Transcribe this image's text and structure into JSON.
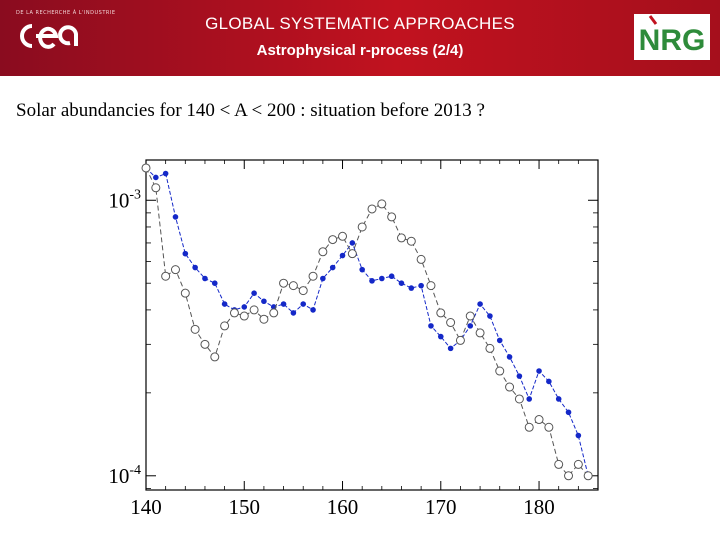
{
  "header": {
    "title": "GLOBAL SYSTEMATIC APPROACHES",
    "subtitle": "Astrophysical r-process (2/4)",
    "left_logo_text": "cea",
    "left_logo_small": "DE LA RECHERCHE À L'INDUSTRIE",
    "right_logo_text": "NRG"
  },
  "slide": {
    "heading": "Solar abundancies for 140 < A < 200 : situation before 2013 ?"
  },
  "colors": {
    "header_red": "#c1121f",
    "series_blue": "#1428c8",
    "series_gray": "#555555"
  },
  "chart_data": {
    "type": "line",
    "title": "",
    "xlabel": "",
    "ylabel": "",
    "xlim": [
      140,
      186
    ],
    "ylim": [
      8.88e-05,
      0.0014
    ],
    "yscale": "log",
    "x_ticks": [
      140,
      150,
      160,
      170,
      180
    ],
    "x_tick_labels": [
      "140",
      "150",
      "160",
      "170",
      "180"
    ],
    "y_ticks": [
      0.001,
      0.0001
    ],
    "y_tick_labels": [
      "10-3",
      "10-4"
    ],
    "series": [
      {
        "marker": "filled-circle",
        "line": "dashed",
        "color": "#1428c8",
        "x": [
          140,
          141,
          142,
          143,
          144,
          145,
          146,
          147,
          148,
          149,
          150,
          151,
          152,
          153,
          154,
          155,
          156,
          157,
          158,
          159,
          160,
          161,
          162,
          163,
          164,
          165,
          166,
          167,
          168,
          169,
          170,
          171,
          172,
          173,
          174,
          175,
          176,
          177,
          178,
          179,
          180,
          181,
          182,
          183,
          184,
          185
        ],
        "y": [
          0.00131,
          0.00121,
          0.00125,
          0.00087,
          0.00064,
          0.00057,
          0.00052,
          0.0005,
          0.00042,
          0.0004,
          0.00041,
          0.00046,
          0.00043,
          0.00041,
          0.00042,
          0.00039,
          0.00042,
          0.0004,
          0.00052,
          0.00057,
          0.00063,
          0.0007,
          0.00056,
          0.00051,
          0.00052,
          0.00053,
          0.0005,
          0.00048,
          0.00049,
          0.00035,
          0.00032,
          0.00029,
          0.00031,
          0.00035,
          0.00042,
          0.00038,
          0.00031,
          0.00027,
          0.00023,
          0.00019,
          0.00024,
          0.00022,
          0.00019,
          0.00017,
          0.00014,
          0.0001
        ]
      },
      {
        "marker": "open-circle",
        "line": "dashed",
        "color": "#555555",
        "x": [
          140,
          141,
          142,
          143,
          144,
          145,
          146,
          147,
          148,
          149,
          150,
          151,
          152,
          153,
          154,
          155,
          156,
          157,
          158,
          159,
          160,
          161,
          162,
          163,
          164,
          165,
          166,
          167,
          168,
          169,
          170,
          171,
          172,
          173,
          174,
          175,
          176,
          177,
          178,
          179,
          180,
          181,
          182,
          183,
          184,
          185
        ],
        "y": [
          0.00131,
          0.00111,
          0.00053,
          0.00056,
          0.00046,
          0.00034,
          0.0003,
          0.00027,
          0.00035,
          0.00039,
          0.00038,
          0.0004,
          0.00037,
          0.00039,
          0.0005,
          0.00049,
          0.00047,
          0.00053,
          0.00065,
          0.00072,
          0.00074,
          0.00064,
          0.0008,
          0.00093,
          0.00097,
          0.00087,
          0.00073,
          0.00071,
          0.00061,
          0.00049,
          0.00039,
          0.00036,
          0.00031,
          0.00038,
          0.00033,
          0.00029,
          0.00024,
          0.00021,
          0.00019,
          0.00015,
          0.00016,
          0.00015,
          0.00011,
          0.0001,
          0.00011,
          0.0001
        ]
      }
    ]
  }
}
